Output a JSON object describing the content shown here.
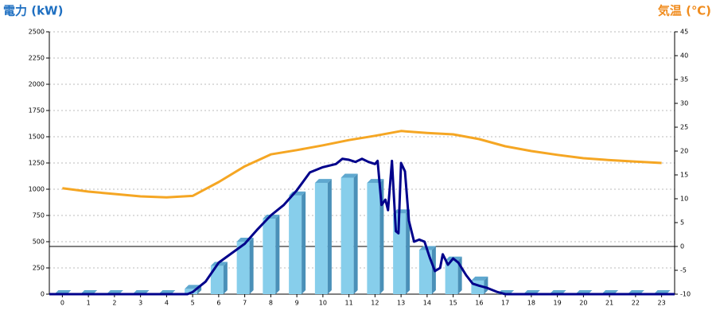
{
  "chart_data": {
    "type": "combo",
    "y_label": "電力 (kW)",
    "y2_label": "気温 (℃)",
    "xlim": [
      -0.5,
      23.5
    ],
    "xticks": [
      0,
      1,
      2,
      3,
      4,
      5,
      6,
      7,
      8,
      9,
      10,
      11,
      12,
      13,
      14,
      15,
      16,
      17,
      18,
      19,
      20,
      21,
      22,
      23
    ],
    "ylim": [
      0,
      2500
    ],
    "yticks": [
      0,
      250,
      500,
      750,
      1000,
      1250,
      1500,
      1750,
      2000,
      2250,
      2500
    ],
    "y2lim": [
      -10,
      45
    ],
    "y2ticks": [
      -10,
      -5,
      0,
      5,
      10,
      15,
      20,
      25,
      30,
      35,
      40,
      45
    ],
    "y2_reference_line": 0,
    "grid": true,
    "series": [
      {
        "type": "bar",
        "color": "#87ceeb",
        "x": [
          0,
          1,
          2,
          3,
          4,
          5,
          6,
          7,
          8,
          9,
          10,
          11,
          12,
          13,
          14,
          15,
          16,
          17,
          18,
          19,
          20,
          21,
          22,
          23
        ],
        "values": [
          0,
          0,
          0,
          0,
          0,
          50,
          270,
          500,
          720,
          940,
          1060,
          1110,
          1060,
          770,
          420,
          320,
          130,
          0,
          0,
          0,
          0,
          0,
          0,
          0
        ]
      },
      {
        "type": "line",
        "color": "#00008b",
        "x": [
          -0.5,
          4.8,
          5,
          5.5,
          6,
          6.5,
          7,
          7.5,
          8,
          8.5,
          9,
          9.5,
          10,
          10.5,
          10.75,
          11,
          11.25,
          11.5,
          11.75,
          12,
          12.1,
          12.25,
          12.4,
          12.5,
          12.65,
          12.8,
          12.9,
          13,
          13.15,
          13.3,
          13.5,
          13.7,
          13.9,
          14.1,
          14.3,
          14.5,
          14.6,
          14.8,
          15,
          15.2,
          15.5,
          15.75,
          16,
          16.3,
          16.7,
          17,
          23.5
        ],
        "values": [
          0,
          0,
          20,
          120,
          300,
          390,
          480,
          620,
          750,
          850,
          990,
          1160,
          1210,
          1240,
          1290,
          1280,
          1260,
          1290,
          1260,
          1240,
          1270,
          850,
          900,
          800,
          1270,
          600,
          580,
          1250,
          1170,
          700,
          500,
          520,
          500,
          350,
          220,
          250,
          380,
          280,
          340,
          300,
          180,
          100,
          80,
          60,
          20,
          0,
          0
        ]
      },
      {
        "type": "line",
        "axis": "y2",
        "color": "#f5a623",
        "x": [
          0,
          1,
          2,
          3,
          4,
          5,
          6,
          7,
          8,
          9,
          10,
          11,
          12,
          13,
          14,
          15,
          16,
          17,
          18,
          19,
          20,
          21,
          22,
          23
        ],
        "values": [
          12.2,
          11.5,
          11,
          10.5,
          10.3,
          10.6,
          13.5,
          16.8,
          19.3,
          20.2,
          21.2,
          22.3,
          23.2,
          24.2,
          23.8,
          23.5,
          22.5,
          21,
          20,
          19.2,
          18.5,
          18.1,
          17.8,
          17.5
        ]
      }
    ]
  }
}
